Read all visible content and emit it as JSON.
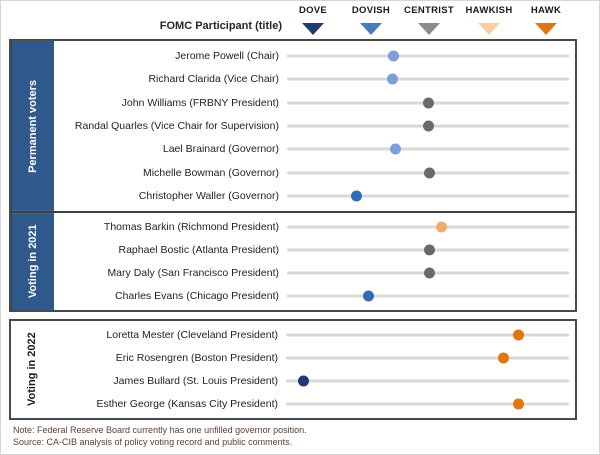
{
  "header": {
    "participant_label": "FOMC Participant (title)"
  },
  "legend": {
    "items": [
      {
        "label": "DOVE",
        "color": "#1e3c6e"
      },
      {
        "label": "DOVISH",
        "color": "#4a7bbf"
      },
      {
        "label": "CENTRIST",
        "color": "#8c8c8c"
      },
      {
        "label": "HAWKISH",
        "color": "#f6cfa2"
      },
      {
        "label": "HAWK",
        "color": "#e2760d"
      }
    ]
  },
  "colors": {
    "dot_light_blue": "#7d9ddb",
    "dot_medium_blue": "#2e6cb5",
    "dot_navy": "#1e3c6e",
    "dot_gray": "#6a6a6a",
    "dot_light_orange": "#f0ac6a",
    "dot_orange": "#e2760d",
    "section_label_bg": "#2f598c",
    "track_line": "#d8d8d8",
    "box_border": "#4a4a4a",
    "note_text": "#5c4033"
  },
  "sections": [
    {
      "label": "Permanent voters",
      "style": "blue",
      "rows": [
        {
          "name": "Jerome Powell (Chair)",
          "dot": "dot_light_blue",
          "pct": 37.7
        },
        {
          "name": "Richard Clarida (Vice Chair)",
          "dot": "dot_light_blue",
          "pct": 37.3
        },
        {
          "name": "John Williams (FRBNY President)",
          "dot": "dot_gray",
          "pct": 50.0
        },
        {
          "name": "Randal Quarles (Vice Chair for Supervision)",
          "dot": "dot_gray",
          "pct": 50.0
        },
        {
          "name": "Lael Brainard (Governor)",
          "dot": "dot_light_blue",
          "pct": 38.4
        },
        {
          "name": "Michelle Bowman (Governor)",
          "dot": "dot_gray",
          "pct": 50.4
        },
        {
          "name": "Christopher Waller (Governor)",
          "dot": "dot_medium_blue",
          "pct": 24.6
        }
      ]
    },
    {
      "label": "Voting in 2021",
      "style": "blue",
      "rows": [
        {
          "name": "Thomas Barkin (Richmond President)",
          "dot": "dot_light_orange",
          "pct": 54.9
        },
        {
          "name": "Raphael Bostic (Atlanta President)",
          "dot": "dot_gray",
          "pct": 50.7
        },
        {
          "name": "Mary Daly (San Francisco President)",
          "dot": "dot_gray",
          "pct": 50.4
        },
        {
          "name": "Charles Evans (Chicago President)",
          "dot": "dot_medium_blue",
          "pct": 28.9
        }
      ]
    },
    {
      "label": "Voting in 2022",
      "style": "plain",
      "rows": [
        {
          "name": "Loretta Mester (Cleveland President)",
          "dot": "dot_orange",
          "pct": 82.0
        },
        {
          "name": "Eric Rosengren (Boston President)",
          "dot": "dot_orange",
          "pct": 76.8
        },
        {
          "name": "James Bullard (St. Louis President)",
          "dot": "dot_navy",
          "pct": 6.3
        },
        {
          "name": "Esther George (Kansas City President)",
          "dot": "dot_orange",
          "pct": 82.0
        }
      ]
    }
  ],
  "notes": {
    "note": "Note: Federal Reserve Board currently has one unfilled  governor position.",
    "source": "Source: CA-CIB analysis of policy voting record and public comments."
  },
  "chart_data": {
    "type": "scatter",
    "title": "",
    "x_scale": {
      "labels": [
        "DOVE",
        "DOVISH",
        "CENTRIST",
        "HAWKISH",
        "HAWK"
      ],
      "values": [
        1,
        2,
        3,
        4,
        5
      ]
    },
    "legend_position": "top",
    "groups": [
      {
        "name": "Permanent voters",
        "points": [
          {
            "label": "Jerome Powell (Chair)",
            "stance": 2.4
          },
          {
            "label": "Richard Clarida (Vice Chair)",
            "stance": 2.4
          },
          {
            "label": "John Williams (FRBNY President)",
            "stance": 3.0
          },
          {
            "label": "Randal Quarles (Vice Chair for Supervision)",
            "stance": 3.0
          },
          {
            "label": "Lael Brainard (Governor)",
            "stance": 2.4
          },
          {
            "label": "Michelle Bowman (Governor)",
            "stance": 3.0
          },
          {
            "label": "Christopher Waller (Governor)",
            "stance": 1.7
          }
        ]
      },
      {
        "name": "Voting in 2021",
        "points": [
          {
            "label": "Thomas Barkin (Richmond President)",
            "stance": 3.2
          },
          {
            "label": "Raphael Bostic (Atlanta President)",
            "stance": 3.0
          },
          {
            "label": "Mary Daly (San Francisco President)",
            "stance": 3.0
          },
          {
            "label": "Charles Evans (Chicago President)",
            "stance": 1.9
          }
        ]
      },
      {
        "name": "Voting in 2022",
        "points": [
          {
            "label": "Loretta Mester (Cleveland President)",
            "stance": 4.5
          },
          {
            "label": "Eric Rosengren (Boston President)",
            "stance": 4.3
          },
          {
            "label": "James Bullard (St. Louis President)",
            "stance": 0.8
          },
          {
            "label": "Esther George (Kansas City President)",
            "stance": 4.5
          }
        ]
      }
    ]
  }
}
